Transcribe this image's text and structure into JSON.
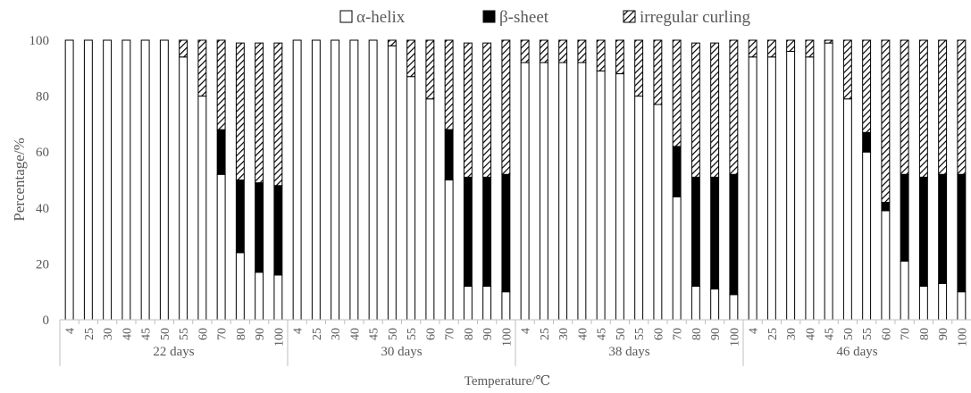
{
  "chart_data": {
    "type": "bar",
    "stacked": true,
    "title": "",
    "xlabel": "Temperature/℃",
    "ylabel": "Percentage/%",
    "ylim": [
      0,
      100
    ],
    "yticks": [
      "0",
      "20",
      "40",
      "60",
      "80",
      "100"
    ],
    "legend_position": "top",
    "grid": false,
    "groups": [
      {
        "label": "22 days",
        "categories": [
          "4",
          "25",
          "30",
          "40",
          "45",
          "50",
          "55",
          "60",
          "70",
          "80",
          "90",
          "100"
        ]
      },
      {
        "label": "30 days",
        "categories": [
          "4",
          "25",
          "30",
          "40",
          "45",
          "50",
          "55",
          "60",
          "70",
          "80",
          "90",
          "100"
        ]
      },
      {
        "label": "38 days",
        "categories": [
          "4",
          "25",
          "30",
          "40",
          "45",
          "50",
          "55",
          "60",
          "70",
          "80",
          "90",
          "100"
        ]
      },
      {
        "label": "46 days",
        "categories": [
          "4",
          "25",
          "30",
          "40",
          "45",
          "50",
          "55",
          "60",
          "70",
          "80",
          "90",
          "100"
        ]
      }
    ],
    "series": [
      {
        "name": "α-helix",
        "pattern": "open",
        "values": [
          100,
          100,
          100,
          100,
          100,
          100,
          94,
          80,
          52,
          24,
          17,
          16,
          100,
          100,
          100,
          100,
          100,
          98,
          87,
          79,
          50,
          12,
          12,
          10,
          92,
          92,
          92,
          92,
          89,
          88,
          80,
          77,
          44,
          12,
          11,
          9,
          94,
          94,
          96,
          94,
          99,
          79,
          60,
          39,
          21,
          12,
          13,
          10
        ]
      },
      {
        "name": "β-sheet",
        "pattern": "solid",
        "values": [
          0,
          0,
          0,
          0,
          0,
          0,
          0,
          0,
          16,
          26,
          32,
          32,
          0,
          0,
          0,
          0,
          0,
          0,
          0,
          0,
          18,
          39,
          39,
          42,
          0,
          0,
          0,
          0,
          0,
          0,
          0,
          0,
          18,
          39,
          40,
          43,
          0,
          0,
          0,
          0,
          0,
          0,
          7,
          3,
          31,
          39,
          39,
          42
        ]
      },
      {
        "name": "irregular curling",
        "pattern": "hatched",
        "values": [
          0,
          0,
          0,
          0,
          0,
          0,
          6,
          20,
          32,
          49,
          50,
          51,
          0,
          0,
          0,
          0,
          0,
          2,
          13,
          21,
          32,
          48,
          48,
          48,
          8,
          8,
          8,
          8,
          11,
          12,
          20,
          23,
          38,
          48,
          48,
          48,
          6,
          6,
          4,
          6,
          1,
          21,
          33,
          58,
          48,
          49,
          48,
          48
        ]
      }
    ],
    "colors": {
      "axis": "#bfbfbf",
      "text": "#595959",
      "bar_stroke": "#000000",
      "solid": "#000000",
      "open": "#ffffff"
    }
  }
}
